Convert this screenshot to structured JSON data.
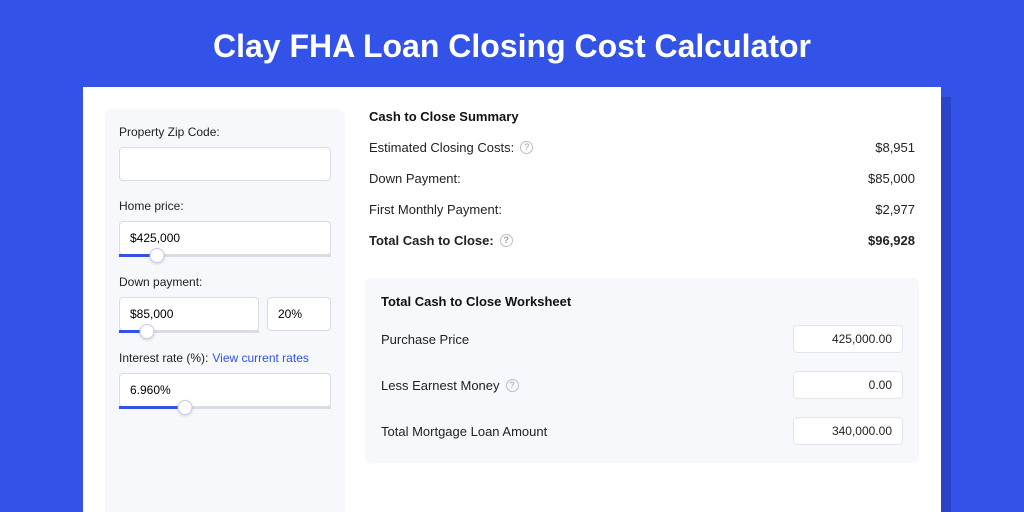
{
  "colors": {
    "page_bg": "#3252e8",
    "shadow": "#2a44c9",
    "panel_bg": "#f7f8fc",
    "border": "#d9dce6",
    "accent": "#3252e8",
    "text": "#222222"
  },
  "title": "Clay FHA Loan Closing Cost Calculator",
  "inputs": {
    "zip_label": "Property Zip Code:",
    "zip_value": "",
    "home_price_label": "Home price:",
    "home_price_value": "$425,000",
    "home_price_slider_pct": 18,
    "down_payment_label": "Down payment:",
    "down_payment_value": "$85,000",
    "down_payment_pct_value": "20%",
    "down_payment_slider_pct": 20,
    "interest_label": "Interest rate (%):",
    "interest_link": "View current rates",
    "interest_value": "6.960%",
    "interest_slider_pct": 31
  },
  "summary": {
    "heading": "Cash to Close Summary",
    "rows": [
      {
        "label": "Estimated Closing Costs:",
        "help": true,
        "value": "$8,951",
        "bold": false
      },
      {
        "label": "Down Payment:",
        "help": false,
        "value": "$85,000",
        "bold": false
      },
      {
        "label": "First Monthly Payment:",
        "help": false,
        "value": "$2,977",
        "bold": false
      },
      {
        "label": "Total Cash to Close:",
        "help": true,
        "value": "$96,928",
        "bold": true
      }
    ]
  },
  "worksheet": {
    "heading": "Total Cash to Close Worksheet",
    "rows": [
      {
        "label": "Purchase Price",
        "help": false,
        "value": "425,000.00"
      },
      {
        "label": "Less Earnest Money",
        "help": true,
        "value": "0.00"
      },
      {
        "label": "Total Mortgage Loan Amount",
        "help": false,
        "value": "340,000.00"
      }
    ]
  }
}
